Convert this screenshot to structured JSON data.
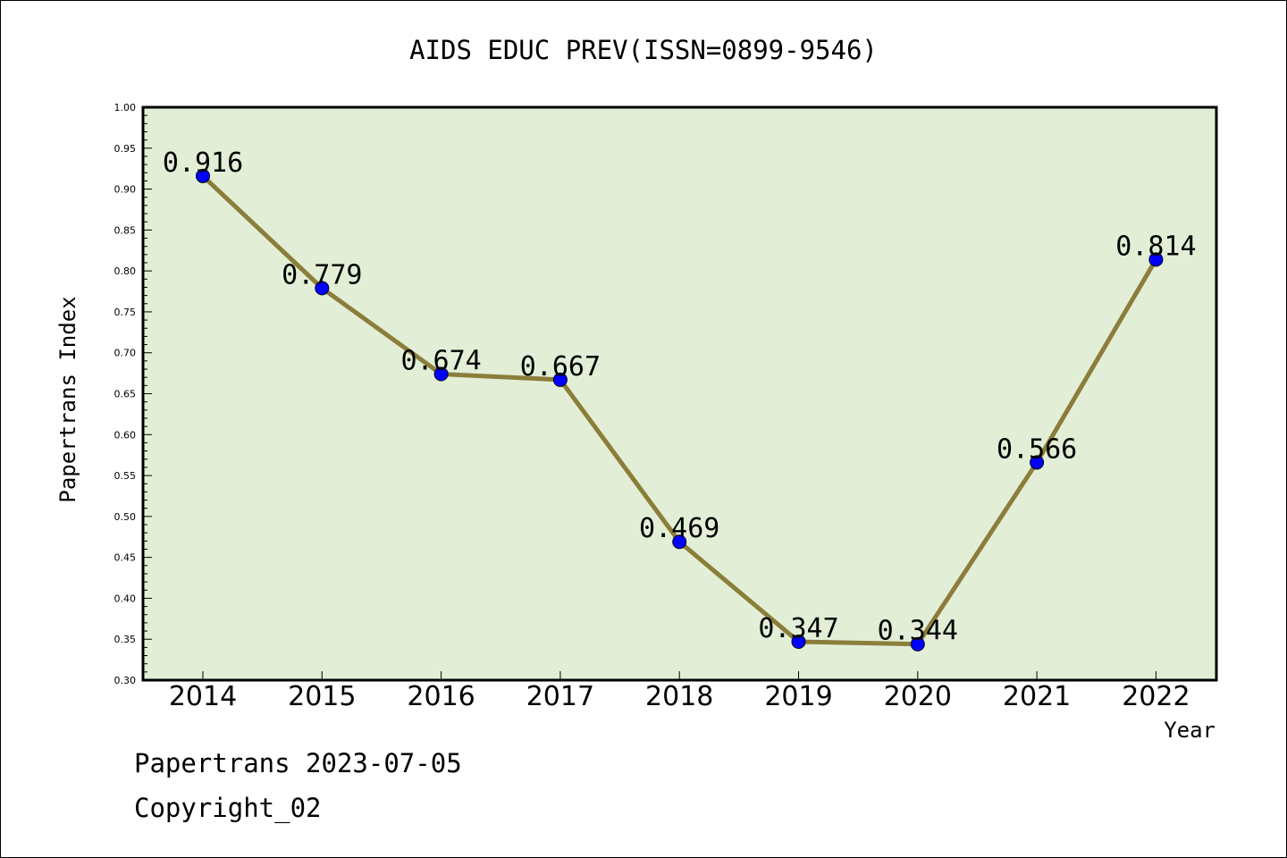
{
  "chart_data": {
    "type": "line",
    "title": "AIDS EDUC PREV(ISSN=0899-9546)",
    "xlabel": "Year",
    "ylabel": "Papertrans Index",
    "categories": [
      "2014",
      "2015",
      "2016",
      "2017",
      "2018",
      "2019",
      "2020",
      "2021",
      "2022"
    ],
    "series": [
      {
        "values": [
          0.916,
          0.779,
          0.674,
          0.667,
          0.469,
          0.347,
          0.344,
          0.566,
          0.814
        ],
        "labels": [
          "0.916",
          "0.779",
          "0.674",
          "0.667",
          "0.469",
          "0.347",
          "0.344",
          "0.566",
          "0.814"
        ]
      }
    ],
    "ylim": [
      0.3,
      1.0
    ],
    "yticks": [
      "0.30",
      "0.35",
      "0.40",
      "0.45",
      "0.50",
      "0.55",
      "0.60",
      "0.65",
      "0.70",
      "0.75",
      "0.80",
      "0.85",
      "0.90",
      "0.95",
      "1.00"
    ],
    "grid": false,
    "colors": {
      "plot_background": "#e2efd6",
      "line": "#8b7d3a",
      "marker": "#0000ff"
    }
  },
  "footer": {
    "line1": "Papertrans 2023-07-05",
    "line2": "Copyright_02"
  }
}
